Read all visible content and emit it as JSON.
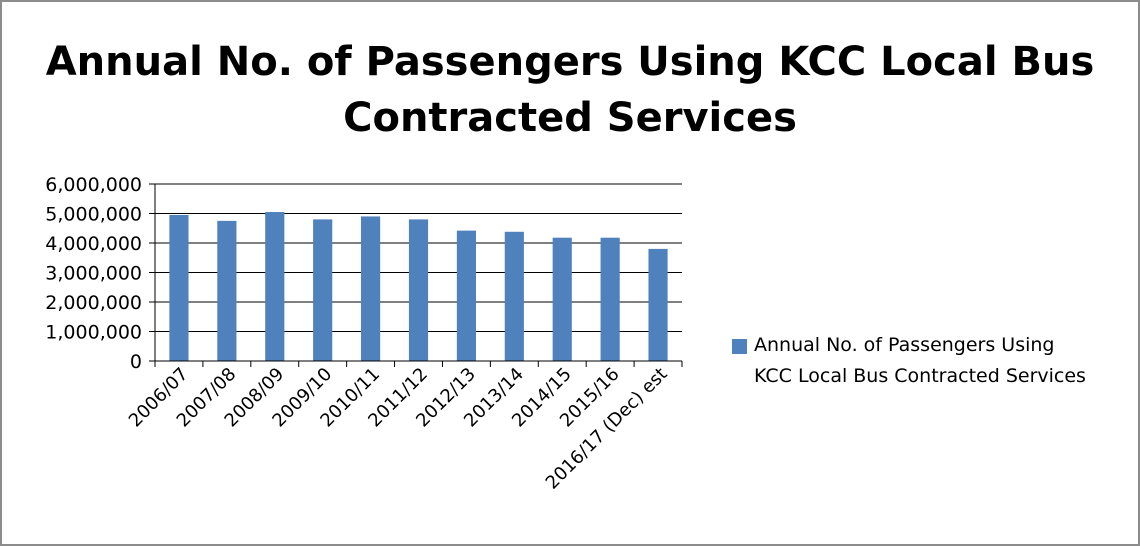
{
  "chart_data": {
    "type": "bar",
    "title_lines": [
      "Annual No. of Passengers Using KCC Local Bus",
      "Contracted Services"
    ],
    "categories": [
      "2006/07",
      "2007/08",
      "2008/09",
      "2009/10",
      "2010/11",
      "2011/12",
      "2012/13",
      "2013/14",
      "2014/15",
      "2015/16",
      "2016/17 (Dec) est"
    ],
    "series": [
      {
        "name": "Annual No. of Passengers Using KCC Local Bus Contracted Services",
        "legend_lines": [
          "Annual No. of Passengers Using",
          "KCC Local Bus Contracted Services"
        ],
        "color": "#4f81bd",
        "values": [
          4950000,
          4750000,
          5050000,
          4800000,
          4900000,
          4800000,
          4420000,
          4380000,
          4180000,
          4180000,
          3800000
        ]
      }
    ],
    "ylim": [
      0,
      6000000
    ],
    "yticks": [
      0,
      1000000,
      2000000,
      3000000,
      4000000,
      5000000,
      6000000
    ],
    "ytick_labels": [
      "0",
      "1,000,000",
      "2,000,000",
      "3,000,000",
      "4,000,000",
      "5,000,000",
      "6,000,000"
    ],
    "grid": true,
    "legend_position": "right"
  }
}
